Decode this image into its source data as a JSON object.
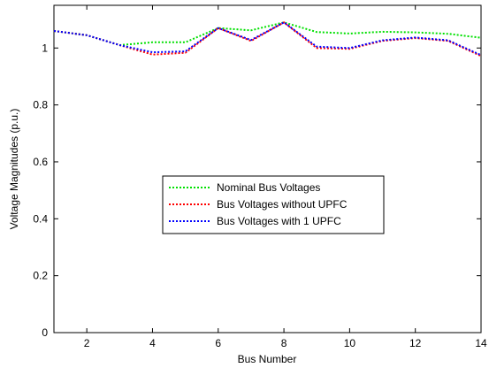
{
  "chart_data": {
    "type": "line",
    "title": "",
    "xlabel": "Bus Number",
    "ylabel": "Voltage Magnitudes (p.u.)",
    "xlim": [
      1,
      14
    ],
    "ylim": [
      0,
      1.15
    ],
    "xticks": [
      2,
      4,
      6,
      8,
      10,
      12,
      14
    ],
    "yticks": [
      0,
      0.2,
      0.4,
      0.6,
      0.8,
      1
    ],
    "grid": false,
    "legend_placement": "center",
    "x": [
      1,
      2,
      3,
      4,
      5,
      6,
      7,
      8,
      9,
      10,
      11,
      12,
      13,
      14
    ],
    "series": [
      {
        "name": "Nominal Bus Voltages",
        "color": "#00e000",
        "style": "dotted",
        "values": [
          1.06,
          1.045,
          1.01,
          1.02,
          1.02,
          1.07,
          1.062,
          1.09,
          1.056,
          1.051,
          1.057,
          1.055,
          1.05,
          1.036
        ]
      },
      {
        "name": "Bus Voltages without UPFC",
        "color": "#ff0000",
        "style": "dotted",
        "values": [
          1.06,
          1.045,
          1.01,
          0.977,
          0.983,
          1.07,
          1.025,
          1.09,
          1.0,
          0.997,
          1.025,
          1.035,
          1.025,
          0.972
        ]
      },
      {
        "name": "Bus Voltages with 1 UPFC",
        "color": "#0000ff",
        "style": "dotted",
        "values": [
          1.06,
          1.045,
          1.01,
          0.985,
          0.988,
          1.07,
          1.028,
          1.09,
          1.005,
          1.0,
          1.027,
          1.037,
          1.027,
          0.975
        ]
      }
    ]
  }
}
